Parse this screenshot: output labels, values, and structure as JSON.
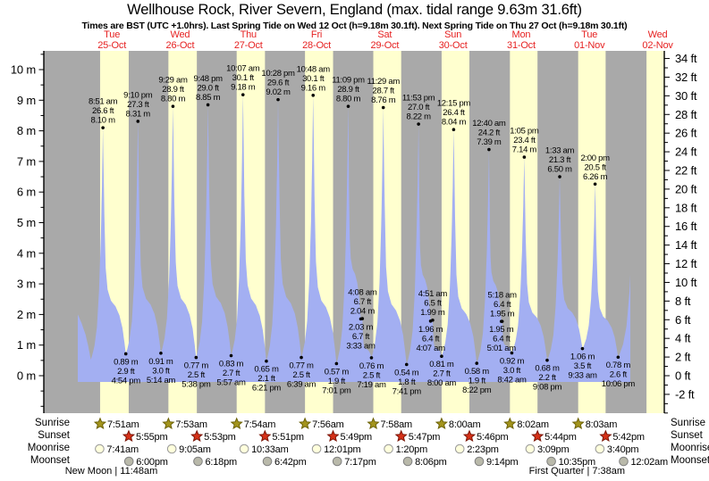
{
  "header": {
    "title": "Wellhouse Rock, River Severn, England (max. tidal range 9.63m 31.6ft)",
    "subtitle": "Times are BST (UTC +1.0hrs). Last Spring Tide on Wed 12 Oct (h=9.18m 30.1ft). Next Spring Tide on Thu 27 Oct (h=9.18m 30.1ft)"
  },
  "colors": {
    "night_band": "#a9a9a9",
    "day_band": "#ffffcf",
    "tide_fill": "#a3aff2",
    "header_red": "#e62222",
    "sunrise_star": "#a3941c",
    "sunrise_star_edge": "#6b6106",
    "sunset_star": "#d63118",
    "sunset_star_edge": "#7a1405",
    "moonrise_fill": "#ffffdc",
    "moonrise_edge": "#999999",
    "moonset_fill": "#b9b9aa",
    "moonset_edge": "#808080",
    "text": "#000000"
  },
  "chart_data": {
    "type": "area",
    "title": "Wellhouse Rock, River Severn, England",
    "max_tidal_range": "9.63m 31.6ft",
    "ylabel_left_unit": "m",
    "ylabel_right_unit": "ft",
    "y_left_ticks": [
      "0 m",
      "1 m",
      "2 m",
      "3 m",
      "4 m",
      "5 m",
      "6 m",
      "7 m",
      "8 m",
      "9 m",
      "10 m"
    ],
    "y_right_ticks": [
      "-2 ft",
      "0 ft",
      "2 ft",
      "4 ft",
      "6 ft",
      "8 ft",
      "10 ft",
      "12 ft",
      "14 ft",
      "16 ft",
      "18 ft",
      "20 ft",
      "22 ft",
      "24 ft",
      "26 ft",
      "28 ft",
      "30 ft",
      "32 ft",
      "34 ft"
    ],
    "y_axis_left": {
      "unit": "m",
      "min": 0,
      "max": 10,
      "label_step": 1
    },
    "y_axis_right": {
      "unit": "ft",
      "min": -2,
      "max": 34,
      "label_step": 2
    },
    "grid": false,
    "days": [
      {
        "dow": "Tue",
        "date": "25-Oct"
      },
      {
        "dow": "Wed",
        "date": "26-Oct"
      },
      {
        "dow": "Thu",
        "date": "27-Oct"
      },
      {
        "dow": "Fri",
        "date": "28-Oct"
      },
      {
        "dow": "Sat",
        "date": "29-Oct"
      },
      {
        "dow": "Sun",
        "date": "30-Oct"
      },
      {
        "dow": "Mon",
        "date": "31-Oct"
      },
      {
        "dow": "Tue",
        "date": "01-Nov"
      },
      {
        "dow": "Wed",
        "date": "02-Nov"
      }
    ],
    "tides": [
      {
        "day": 0,
        "hour": 0.0,
        "m": 2.0,
        "kind": "start",
        "annotated": false
      },
      {
        "day": 0,
        "hour": 4.6,
        "m": 0.7,
        "kind": "low",
        "annotated": false
      },
      {
        "day": 0,
        "hour": 8.85,
        "m": 8.1,
        "ft": 26.6,
        "time": "8:51 am",
        "kind": "high",
        "annotated": true
      },
      {
        "day": 0,
        "hour": 16.9,
        "m": 0.89,
        "ft": 2.9,
        "time": "4:54 pm",
        "kind": "low",
        "annotated": true
      },
      {
        "day": 0,
        "hour": 21.167,
        "m": 8.31,
        "ft": 27.3,
        "time": "9:10 pm",
        "kind": "high",
        "annotated": true
      },
      {
        "day": 1,
        "hour": 5.233,
        "m": 0.91,
        "ft": 3.0,
        "time": "5:14 am",
        "kind": "low",
        "annotated": true
      },
      {
        "day": 1,
        "hour": 9.483,
        "m": 8.8,
        "ft": 28.9,
        "time": "9:29 am",
        "kind": "high",
        "annotated": true
      },
      {
        "day": 1,
        "hour": 17.633,
        "m": 0.77,
        "ft": 2.5,
        "time": "5:38 pm",
        "kind": "low",
        "annotated": true
      },
      {
        "day": 1,
        "hour": 21.8,
        "m": 8.85,
        "ft": 29.0,
        "time": "9:48 pm",
        "kind": "high",
        "annotated": true
      },
      {
        "day": 2,
        "hour": 5.95,
        "m": 0.83,
        "ft": 2.7,
        "time": "5:57 am",
        "kind": "low",
        "annotated": true
      },
      {
        "day": 2,
        "hour": 10.117,
        "m": 9.18,
        "ft": 30.1,
        "time": "10:07 am",
        "kind": "high",
        "annotated": true
      },
      {
        "day": 2,
        "hour": 18.35,
        "m": 0.65,
        "ft": 2.1,
        "time": "6:21 pm",
        "kind": "low",
        "annotated": true
      },
      {
        "day": 2,
        "hour": 22.467,
        "m": 9.02,
        "ft": 29.6,
        "time": "10:28 pm",
        "kind": "high",
        "annotated": true
      },
      {
        "day": 3,
        "hour": 6.65,
        "m": 0.77,
        "ft": 2.5,
        "time": "6:39 am",
        "kind": "low",
        "annotated": true
      },
      {
        "day": 3,
        "hour": 10.8,
        "m": 9.16,
        "ft": 30.1,
        "time": "10:48 am",
        "kind": "high",
        "annotated": true
      },
      {
        "day": 3,
        "hour": 19.017,
        "m": 0.57,
        "ft": 1.9,
        "time": "7:01 pm",
        "kind": "low",
        "annotated": true
      },
      {
        "day": 3,
        "hour": 23.15,
        "m": 8.8,
        "ft": 28.9,
        "time": "11:09 pm",
        "kind": "high",
        "annotated": true
      },
      {
        "day": 4,
        "hour": 3.55,
        "m": 2.03,
        "ft": 6.7,
        "time": "3:33 am",
        "kind": "shoulder-low",
        "annotated": true
      },
      {
        "day": 4,
        "hour": 4.133,
        "m": 2.04,
        "ft": 6.7,
        "time": "4:08 am",
        "kind": "shoulder-high",
        "annotated": true
      },
      {
        "day": 4,
        "hour": 7.317,
        "m": 0.76,
        "ft": 2.5,
        "time": "7:19 am",
        "kind": "low",
        "annotated": true
      },
      {
        "day": 4,
        "hour": 11.483,
        "m": 8.76,
        "ft": 28.7,
        "time": "11:29 am",
        "kind": "high",
        "annotated": true
      },
      {
        "day": 4,
        "hour": 19.683,
        "m": 0.54,
        "ft": 1.8,
        "time": "7:41 pm",
        "kind": "low",
        "annotated": true
      },
      {
        "day": 4,
        "hour": 23.883,
        "m": 8.22,
        "ft": 27.0,
        "time": "11:53 pm",
        "kind": "high",
        "annotated": true
      },
      {
        "day": 5,
        "hour": 4.117,
        "m": 1.96,
        "ft": 6.4,
        "time": "4:07 am",
        "kind": "shoulder-low",
        "annotated": true
      },
      {
        "day": 5,
        "hour": 4.85,
        "m": 1.99,
        "ft": 6.5,
        "time": "4:51 am",
        "kind": "shoulder-high",
        "annotated": true
      },
      {
        "day": 5,
        "hour": 8.0,
        "m": 0.81,
        "ft": 2.7,
        "time": "8:00 am",
        "kind": "low",
        "annotated": true
      },
      {
        "day": 5,
        "hour": 12.25,
        "m": 8.04,
        "ft": 26.4,
        "time": "12:15 pm",
        "kind": "high",
        "annotated": true
      },
      {
        "day": 5,
        "hour": 20.367,
        "m": 0.58,
        "ft": 1.9,
        "time": "8:22 pm",
        "kind": "low",
        "annotated": true
      },
      {
        "day": 6,
        "hour": 0.667,
        "m": 7.39,
        "ft": 24.2,
        "time": "12:40 am",
        "kind": "high",
        "annotated": true
      },
      {
        "day": 6,
        "hour": 5.017,
        "m": 1.95,
        "ft": 6.4,
        "time": "5:01 am",
        "kind": "shoulder-low",
        "annotated": true
      },
      {
        "day": 6,
        "hour": 5.3,
        "m": 1.95,
        "ft": 6.4,
        "time": "5:18 am",
        "kind": "shoulder-high",
        "annotated": true
      },
      {
        "day": 6,
        "hour": 8.7,
        "m": 0.92,
        "ft": 3.0,
        "time": "8:42 am",
        "kind": "low",
        "annotated": true
      },
      {
        "day": 6,
        "hour": 13.083,
        "m": 7.14,
        "ft": 23.4,
        "time": "1:05 pm",
        "kind": "high",
        "annotated": true
      },
      {
        "day": 6,
        "hour": 21.133,
        "m": 0.68,
        "ft": 2.2,
        "time": "9:08 pm",
        "kind": "low",
        "annotated": true
      },
      {
        "day": 7,
        "hour": 1.55,
        "m": 6.5,
        "ft": 21.3,
        "time": "1:33 am",
        "kind": "high",
        "annotated": true
      },
      {
        "day": 7,
        "hour": 9.55,
        "m": 1.06,
        "ft": 3.5,
        "time": "9:33 am",
        "kind": "low",
        "annotated": true
      },
      {
        "day": 7,
        "hour": 14.0,
        "m": 6.26,
        "ft": 20.5,
        "time": "2:00 pm",
        "kind": "high",
        "annotated": true
      },
      {
        "day": 7,
        "hour": 22.1,
        "m": 0.78,
        "ft": 2.6,
        "time": "10:06 pm",
        "kind": "low",
        "annotated": true
      },
      {
        "day": 8,
        "hour": 4.0,
        "m": 7.8,
        "kind": "high",
        "annotated": false
      }
    ],
    "curve_end": {
      "day": 8,
      "hour": 2.4
    }
  },
  "astro": {
    "rows": [
      {
        "label": "Sunrise",
        "icon": "sunrise-star-icon",
        "entries": [
          {
            "day": 0,
            "time": "7:51am",
            "hour": 7.85
          },
          {
            "day": 1,
            "time": "7:53am",
            "hour": 7.883
          },
          {
            "day": 2,
            "time": "7:54am",
            "hour": 7.9
          },
          {
            "day": 3,
            "time": "7:56am",
            "hour": 7.933
          },
          {
            "day": 4,
            "time": "7:58am",
            "hour": 7.967
          },
          {
            "day": 5,
            "time": "8:00am",
            "hour": 8.0
          },
          {
            "day": 6,
            "time": "8:02am",
            "hour": 8.033
          },
          {
            "day": 7,
            "time": "8:03am",
            "hour": 8.05
          }
        ]
      },
      {
        "label": "Sunset",
        "icon": "sunset-star-icon",
        "entries": [
          {
            "day": 0,
            "time": "5:55pm",
            "hour": 17.917
          },
          {
            "day": 1,
            "time": "5:53pm",
            "hour": 17.883
          },
          {
            "day": 2,
            "time": "5:51pm",
            "hour": 17.85
          },
          {
            "day": 3,
            "time": "5:49pm",
            "hour": 17.817
          },
          {
            "day": 4,
            "time": "5:47pm",
            "hour": 17.783
          },
          {
            "day": 5,
            "time": "5:46pm",
            "hour": 17.767
          },
          {
            "day": 6,
            "time": "5:44pm",
            "hour": 17.733
          },
          {
            "day": 7,
            "time": "5:42pm",
            "hour": 17.7
          }
        ]
      },
      {
        "label": "Moonrise",
        "icon": "moonrise-circle-icon",
        "entries": [
          {
            "day": 0,
            "time": "7:41am",
            "hour": 7.683
          },
          {
            "day": 1,
            "time": "9:05am",
            "hour": 9.083
          },
          {
            "day": 2,
            "time": "10:33am",
            "hour": 10.55
          },
          {
            "day": 3,
            "time": "12:01pm",
            "hour": 12.017
          },
          {
            "day": 4,
            "time": "1:20pm",
            "hour": 13.333
          },
          {
            "day": 5,
            "time": "2:23pm",
            "hour": 14.383
          },
          {
            "day": 6,
            "time": "3:09pm",
            "hour": 15.15
          },
          {
            "day": 7,
            "time": "3:40pm",
            "hour": 15.667
          }
        ]
      },
      {
        "label": "Moonset",
        "icon": "moonset-circle-icon",
        "entries": [
          {
            "day": 0,
            "time": "6:00pm",
            "hour": 18.0
          },
          {
            "day": 1,
            "time": "6:18pm",
            "hour": 18.3
          },
          {
            "day": 2,
            "time": "6:42pm",
            "hour": 18.7
          },
          {
            "day": 3,
            "time": "7:17pm",
            "hour": 19.283
          },
          {
            "day": 4,
            "time": "8:06pm",
            "hour": 20.1
          },
          {
            "day": 5,
            "time": "9:14pm",
            "hour": 21.233
          },
          {
            "day": 6,
            "time": "10:35pm",
            "hour": 22.583
          },
          {
            "day": 8,
            "time": "12:02am",
            "hour": 0.033
          }
        ]
      }
    ],
    "phases": [
      {
        "label": "New Moon | 11:48am",
        "name": "New Moon",
        "time": "11:48am",
        "day": 0,
        "hour": 11.8
      },
      {
        "label": "First Quarter | 7:38am",
        "name": "First Quarter",
        "time": "7:38am",
        "day": 7,
        "hour": 7.633
      }
    ]
  }
}
